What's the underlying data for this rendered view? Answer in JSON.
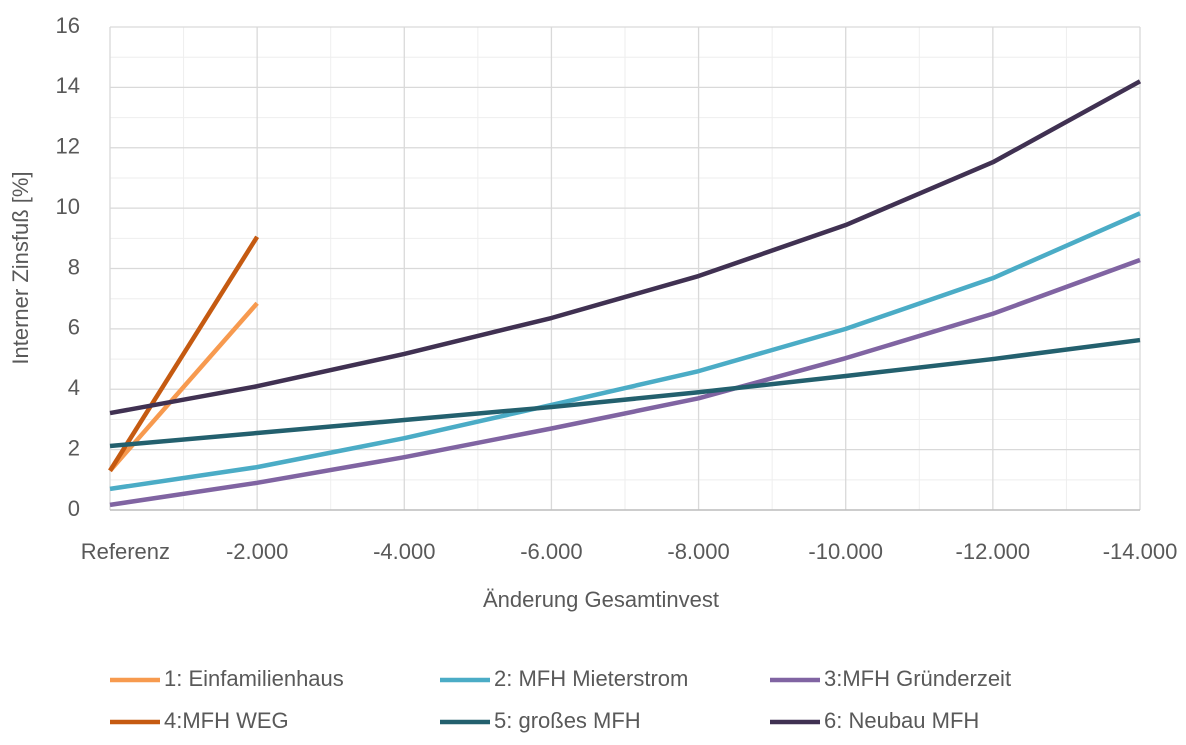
{
  "chart_data": {
    "type": "line",
    "x_label": "Änderung Gesamtinvest",
    "y_label": "Interner Zinsfuß [%]",
    "x": [
      0,
      -2000,
      -4000,
      -6000,
      -8000,
      -10000,
      -12000,
      -14000
    ],
    "series": [
      {
        "name": "1: Einfamilienhaus",
        "color": "#f79a4f",
        "values": [
          1.3,
          6.85,
          null,
          null,
          null,
          null,
          null,
          null
        ]
      },
      {
        "name": "2: MFH Mieterstrom",
        "color": "#4bacc6",
        "values": [
          0.7,
          1.42,
          2.38,
          3.48,
          4.6,
          6.0,
          7.68,
          9.83
        ]
      },
      {
        "name": "3:MFH Gründerzeit",
        "color": "#8064a2",
        "values": [
          0.17,
          0.9,
          1.75,
          2.7,
          3.7,
          5.03,
          6.5,
          8.28
        ]
      },
      {
        "name": "4:MFH WEG",
        "color": "#c55a11",
        "values": [
          1.3,
          9.05,
          null,
          null,
          null,
          null,
          null,
          null
        ]
      },
      {
        "name": "5: großes MFH",
        "color": "#23606e",
        "values": [
          2.12,
          2.55,
          2.98,
          3.41,
          3.9,
          4.44,
          5.0,
          5.63
        ]
      },
      {
        "name": "6: Neubau MFH",
        "color": "#403152",
        "values": [
          3.21,
          4.1,
          5.17,
          6.36,
          7.75,
          9.44,
          11.52,
          14.2
        ]
      }
    ],
    "xlim": [
      0,
      -14000
    ],
    "xticks": [
      {
        "value": 0,
        "label": "Referenz"
      },
      {
        "value": -2000,
        "label": "-2.000"
      },
      {
        "value": -4000,
        "label": "-4.000"
      },
      {
        "value": -6000,
        "label": "-6.000"
      },
      {
        "value": -8000,
        "label": "-8.000"
      },
      {
        "value": -10000,
        "label": "-10.000"
      },
      {
        "value": -12000,
        "label": "-12.000"
      },
      {
        "value": -14000,
        "label": "-14.000"
      }
    ],
    "xminorticks": [
      -1000,
      -3000,
      -5000,
      -7000,
      -9000,
      -11000,
      -13000
    ],
    "ylim": [
      0,
      16
    ],
    "yticks": [
      0,
      2,
      4,
      6,
      8,
      10,
      12,
      14,
      16
    ],
    "yminorticks": [
      1,
      3,
      5,
      7,
      9,
      11,
      13,
      15
    ],
    "grid": true,
    "legend": "bottom"
  }
}
